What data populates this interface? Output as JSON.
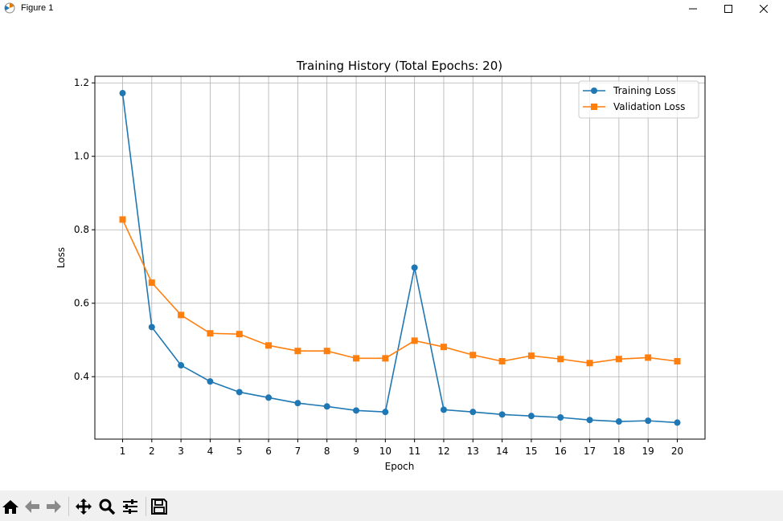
{
  "window": {
    "title": "Figure 1"
  },
  "toolbar": {
    "buttons": [
      "home-icon",
      "back-arrow-icon",
      "forward-arrow-icon",
      "pan-icon",
      "zoom-icon",
      "configure-subplots-icon",
      "save-icon"
    ]
  },
  "chart_data": {
    "type": "line",
    "title": "Training History (Total Epochs: 20)",
    "xlabel": "Epoch",
    "ylabel": "Loss",
    "x": [
      1,
      2,
      3,
      4,
      5,
      6,
      7,
      8,
      9,
      10,
      11,
      12,
      13,
      14,
      15,
      16,
      17,
      18,
      19,
      20
    ],
    "xticks": [
      "1",
      "2",
      "3",
      "4",
      "5",
      "6",
      "7",
      "8",
      "9",
      "10",
      "11",
      "12",
      "13",
      "14",
      "15",
      "16",
      "17",
      "18",
      "19",
      "20"
    ],
    "yticks": [
      0.4,
      0.6,
      0.8,
      1.0,
      1.2
    ],
    "ytick_labels": [
      "0.4",
      "0.6",
      "0.8",
      "1.0",
      "1.2"
    ],
    "xlim": [
      0.05,
      20.95
    ],
    "ylim": [
      0.23,
      1.218
    ],
    "grid": true,
    "legend_position": "upper-right",
    "series": [
      {
        "name": "Training Loss",
        "color": "#1f77b4",
        "marker": "circle",
        "values": [
          1.172,
          0.535,
          0.431,
          0.387,
          0.358,
          0.343,
          0.328,
          0.319,
          0.308,
          0.304,
          0.697,
          0.31,
          0.304,
          0.297,
          0.293,
          0.289,
          0.282,
          0.278,
          0.28,
          0.275
        ]
      },
      {
        "name": "Validation Loss",
        "color": "#ff7f0e",
        "marker": "square",
        "values": [
          0.828,
          0.656,
          0.568,
          0.518,
          0.516,
          0.485,
          0.47,
          0.47,
          0.45,
          0.45,
          0.498,
          0.481,
          0.459,
          0.442,
          0.457,
          0.448,
          0.437,
          0.448,
          0.452,
          0.442
        ]
      }
    ]
  }
}
